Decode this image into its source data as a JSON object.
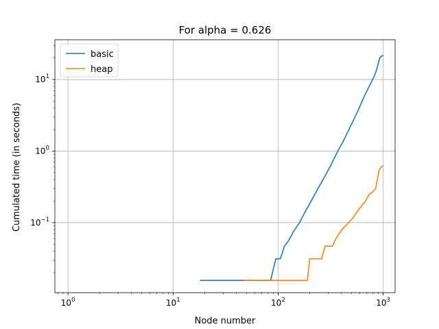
{
  "chart_data": {
    "type": "line",
    "title": "For alpha = 0.626",
    "xlabel": "Node number",
    "ylabel": "Cumulated time (in seconds)",
    "xscale": "log",
    "yscale": "log",
    "xlim": [
      0.75,
      1300
    ],
    "ylim": [
      0.0105,
      36
    ],
    "grid": true,
    "legend": "upper-left",
    "xticks": [
      {
        "value": 1,
        "base": "10",
        "exp": "0"
      },
      {
        "value": 10,
        "base": "10",
        "exp": "1"
      },
      {
        "value": 100,
        "base": "10",
        "exp": "2"
      },
      {
        "value": 1000,
        "base": "10",
        "exp": "3"
      }
    ],
    "yticks": [
      {
        "value": 0.1,
        "base": "10",
        "exp": "−1"
      },
      {
        "value": 1,
        "base": "10",
        "exp": "0"
      },
      {
        "value": 10,
        "base": "10",
        "exp": "1"
      }
    ],
    "series": [
      {
        "name": "basic",
        "color": "#1f77b4",
        "x": [
          18,
          33,
          37,
          45,
          50,
          56,
          62,
          70,
          78,
          85,
          95,
          105,
          115,
          125,
          140,
          160,
          180,
          210,
          240,
          280,
          320,
          370,
          420,
          480,
          540,
          600,
          660,
          720,
          780,
          830,
          870,
          900,
          930,
          960,
          1000
        ],
        "y": [
          0.0156,
          0.0156,
          0.0156,
          0.0156,
          0.0156,
          0.0156,
          0.0156,
          0.0156,
          0.0156,
          0.0156,
          0.0312,
          0.0312,
          0.047,
          0.055,
          0.075,
          0.1,
          0.14,
          0.21,
          0.3,
          0.45,
          0.65,
          1.0,
          1.4,
          2.1,
          3.0,
          4.2,
          5.8,
          7.5,
          9.5,
          11.5,
          14.0,
          17.0,
          20.0,
          21.0,
          22.0
        ]
      },
      {
        "name": "heap",
        "color": "#ff7f0e",
        "x": [
          47,
          55,
          65,
          80,
          100,
          130,
          160,
          190,
          200,
          220,
          260,
          280,
          300,
          330,
          360,
          400,
          450,
          500,
          560,
          620,
          680,
          740,
          800,
          850,
          880,
          920,
          960,
          1000
        ],
        "y": [
          0.0156,
          0.0156,
          0.0156,
          0.0156,
          0.0156,
          0.0156,
          0.0156,
          0.0156,
          0.0312,
          0.0312,
          0.0312,
          0.047,
          0.047,
          0.047,
          0.062,
          0.078,
          0.094,
          0.11,
          0.14,
          0.17,
          0.2,
          0.25,
          0.27,
          0.3,
          0.4,
          0.55,
          0.6,
          0.62
        ]
      }
    ]
  }
}
